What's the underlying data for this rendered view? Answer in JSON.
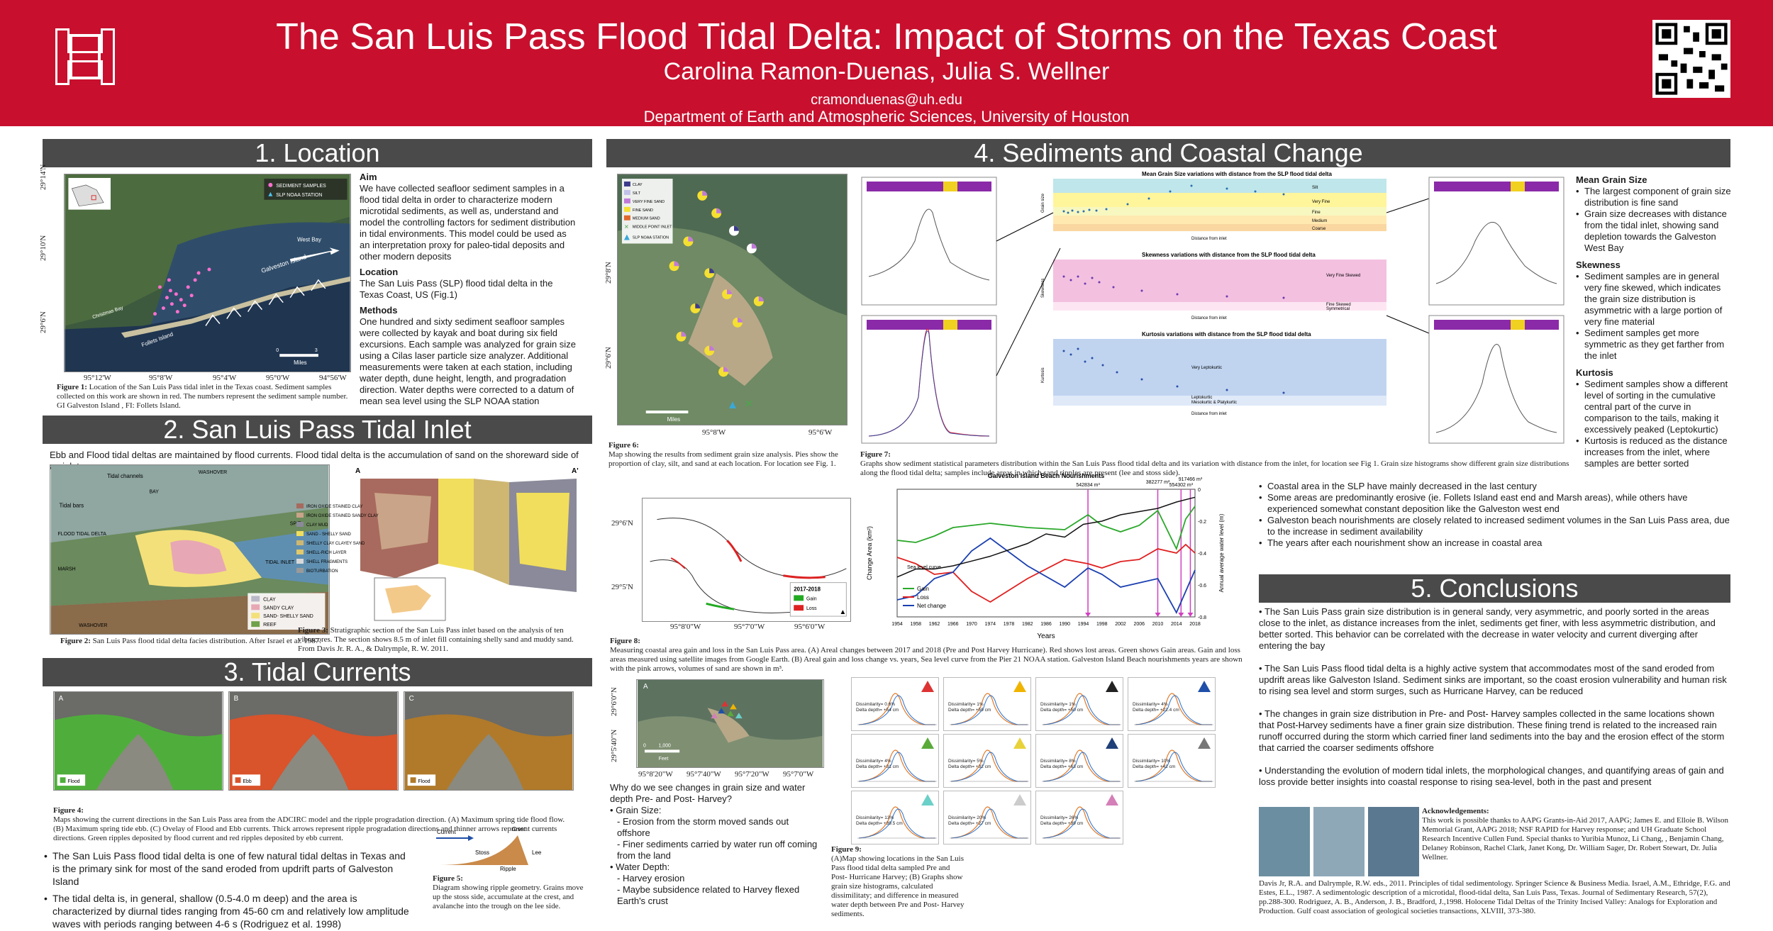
{
  "header": {
    "title": "The San Luis Pass Flood Tidal Delta: Impact of Storms on the Texas Coast",
    "authors": "Carolina Ramon-Duenas, Julia S. Wellner",
    "email": "cramonduenas@uh.edu",
    "department": "Department of Earth and Atmospheric Sciences, University of Houston"
  },
  "sections": {
    "s1": "1. Location",
    "s2": "2. San Luis Pass Tidal Inlet",
    "s3": "3. Tidal Currents",
    "s4": "4. Sediments and Coastal Change",
    "s5": "5. Conclusions"
  },
  "location": {
    "aim_title": "Aim",
    "aim_text": "We have collected seafloor sediment samples in a flood tidal delta in order to characterize modern microtidal sediments, as well as, understand and model the controlling factors for sediment distribution in tidal environments. This model could be used as an interpretation proxy for paleo-tidal deposits and other modern deposits",
    "loc_title": "Location",
    "loc_text": "The San Luis Pass (SLP) flood tidal delta in the Texas Coast, US (Fig.1)",
    "meth_title": "Methods",
    "meth_text": "One hundred and sixty sediment seafloor samples were collected by kayak and boat during six field excursions. Each sample was analyzed for grain size using a Cilas laser particle size analyzer. Additional measurements were taken at each station, including water depth, dune height, length, and progradation direction. Water depths were corrected to a datum of mean sea level using the SLP NOAA station",
    "fig1_label": "Figure 1:",
    "fig1_caption": "Location of the San Luis Pass tidal inlet in the Texas coast. Sediment samples collected on this work are shown in red. The numbers represent the sediment sample number. GI Galveston Island , FI: Follets Island.",
    "map_legend": [
      "SEDIMENT SAMPLES",
      "SLP NOAA STATION"
    ],
    "lat_labels": [
      "29°14'N",
      "29°10'N",
      "29°6'N"
    ],
    "lon_labels": [
      "95°12'W",
      "95°8'W",
      "95°4'W",
      "95°0'W",
      "94°56'W"
    ],
    "scale": "Miles",
    "scale_ticks": [
      "0",
      "3"
    ],
    "map_text": [
      "Galveston Island",
      "West Bay",
      "Follets Island",
      "Christmas Bay"
    ]
  },
  "inlet": {
    "intro": "Ebb and Flood tidal deltas are maintained by flood currents.  Flood tidal delta is the accumulation of sand on the shoreward side of an inlet",
    "fig2_label": "Figure 2:",
    "fig2_caption": "San Luis Pass flood tidal delta facies distribution. After Israel et al. 1987.",
    "fig3_label": "Figure 3:",
    "fig3_caption": "Stratigraphic section of the San Luis Pass inlet based on  the analysis of ten vibracores. The section shows 8.5 m of inlet fill containing shelly sand and muddy sand. From Davis Jr. R. A., & Dalrymple, R. W. 2011.",
    "block_labels": [
      "Tidal channels",
      "WASHOVER",
      "BAY",
      "Tidal bars",
      "FLOOD TIDAL DELTA",
      "MARSH",
      "WASHOVER",
      "SPIT",
      "TIDAL INLET"
    ],
    "facies_legend": [
      "CLAY",
      "SANDY CLAY",
      "SAND- SHELLY SAND",
      "REEF"
    ],
    "facies_colors": [
      "#b9b9c8",
      "#e8a7b4",
      "#f3e07a",
      "#6fa24a"
    ],
    "strat_legend": [
      "IRON OXIDE STAINED CLAY",
      "IRON OXIDE STAINED SANDY CLAY",
      "CLAY MUD",
      "SAND - SHELLY SAND",
      "SHELLY CLAY CLAYEY SAND",
      "SHELL-RICH LAYER",
      "SHELL FRAGMENTS",
      "BIOTURBATION"
    ],
    "strat_colors": [
      "#a86a5e",
      "#c9a488",
      "#8a8a9a",
      "#f1de5c",
      "#cfb772",
      "#e3c96a",
      "#d8d8d8",
      "#9a9a9a"
    ],
    "section_labels": [
      "A",
      "A'"
    ]
  },
  "currents": {
    "fig4_label": "Figure 4:",
    "fig4_caption": "Maps showing the current directions in the San Luis Pass area from the ADCIRC model and the ripple progradation direction. (A) Maximum spring tide flood flow. (B) Maximum spring tide ebb. (C) Ovelay  of Flood and Ebb currents. Thick arrows represent ripple progradation directions and thinner arrows represent currents directions. Green ripples deposited by flood current  and red ripples deposited by ebb current.",
    "panels": [
      {
        "label": "A",
        "legend": "Flood",
        "color": "#4fae3b"
      },
      {
        "label": "B",
        "legend": "Ebb",
        "color": "#d9532b"
      },
      {
        "label": "C",
        "legend": "Flood",
        "color": "#b07a2a"
      }
    ],
    "bullets": [
      "The San Luis Pass flood tidal delta is one of few natural tidal deltas in Texas and is the primary sink for most of the sand eroded from updrift parts of Galveston Island",
      "The tidal delta is, in general, shallow (0.5-4.0 m deep) and the area is characterized by diurnal tides ranging from 45-60 cm and relatively low amplitude waves with periods ranging between 4-6 s (Rodriguez et al. 1998)"
    ],
    "fig5_label": "Figure 5:",
    "fig5_caption": "Diagram showing ripple geometry. Grains move up the stoss side, accumulate at the crest, and avalanche into the trough on the lee side.",
    "ripple_labels": [
      "Current",
      "Crest",
      "Lee",
      "Stoss",
      "Ripple"
    ]
  },
  "sediments": {
    "fig6_label": "Figure 6:",
    "fig6_caption": "Map showing the results from sediment grain size analysis. Pies show the proportion of clay, silt, and sand at each location. For location see Fig. 1.",
    "fig6_legend": [
      "CLAY",
      "SILT",
      "VERY FINE SAND",
      "FINE SAND",
      "MEDIUM SAND",
      "MIDDLE POINT INLET",
      "SLP NOAA STATION"
    ],
    "fig6_colors": [
      "#3c3c8c",
      "#c0c0e8",
      "#c07ad8",
      "#f5e032",
      "#e0682c",
      "#4aa84a",
      "#3aa8d8"
    ],
    "fig6_lat": [
      "29°8'N",
      "29°6'N"
    ],
    "fig6_lon": [
      "95°8'W",
      "95°6'W"
    ],
    "fig6_scale": "Miles",
    "fig7_label": "Figure 7:",
    "fig7_caption": "Graphs show sediment statistical parameters distribution within the San Luis Pass flood tidal delta and its variation with distance from the inlet, for location see Fig 1. Grain size histograms show different grain size distributions along the flood tidal delta; samples include areas in which sand  ripples are present (lee and stoss side).",
    "fig7_titles": [
      "Mean Grain Size variations with distance from the SLP flood tidal delta",
      "Skewness variations with distance from the SLP flood tidal delta",
      "Kurtosis variations with distance from the SLP flood tidal delta"
    ],
    "fig7_xlabel": "Distance from inlet",
    "fig7_ylabels": [
      "Grain size",
      "Skewness",
      "Kurtosis"
    ],
    "fig7_bands_mean": [
      "Silt",
      "Very Fine",
      "Fine",
      "Medium",
      "Coarse"
    ],
    "fig7_bands_skew": [
      "Very Fine Skewed",
      "Fine Skewed",
      "Symmetrical"
    ],
    "fig7_bands_kurt": [
      "Very Leptokurtic",
      "Leptokurtic",
      "Mesokurtic & Platykurtic"
    ],
    "right_notes": [
      {
        "title": "Mean Grain Size",
        "items": [
          "The largest component of grain size distribution is fine sand",
          "Grain size decreases with distance from the tidal inlet, showing sand depletion towards the Galveston West Bay"
        ]
      },
      {
        "title": "Skewness",
        "items": [
          "Sediment samples are in general very fine skewed, which indicates the grain size distribution is asymmetric with a large portion of very fine material",
          "Sediment samples get more symmetric as they get farther from the inlet"
        ]
      },
      {
        "title": "Kurtosis",
        "items": [
          "Sediment samples show a different level of sorting in the cumulative central part of the curve in comparison to the tails, making it excessively peaked (Leptokurtic)",
          "Kurtosis is reduced as the distance increases from the inlet, where samples are better sorted"
        ]
      }
    ],
    "fig8_label": "Figure 8:",
    "fig8_caption": "Measuring coastal area gain and loss in the San Luis Pass area. (A) Areal changes between 2017 and 2018 (Pre and Post Harvey Hurricane). Red shows lost areas. Green shows Gain areas. Gain and loss areas measured using satellite images from Google Earth. (B) Areal gain and loss change vs. years, Sea level curve from the Pier 21 NOAA station. Galveston Island Beach nourishments years are shown with the pink arrows, volumes of sand are shown in m³.",
    "fig8_map_legend_title": "2017-2018",
    "fig8_map_legend": [
      "Gain",
      "Loss"
    ],
    "fig8_lat": [
      "29°6'N",
      "29°5'N"
    ],
    "fig8_lon": [
      "95°8'0\"W",
      "95°7'0\"W",
      "95°6'0\"W"
    ],
    "fig9_label": "Figure 9:",
    "fig9_caption": "(A)Map showing locations in the San Luis Pass flood tidal delta sampled Pre and  Post- Hurricane Harvey; (B) Graphs show grain size histograms, calculated dissimilitaty; and difference in measured water depth between  Pre and Post- Harvey sediments.",
    "fig9_map_lat": [
      "29°6'0\"N",
      "29°5'40\"N"
    ],
    "fig9_map_lon": [
      "95°8'20\"W",
      "95°7'40\"W",
      "95°7'20\"W",
      "95°7'0\"W"
    ],
    "fig9_scale": [
      "0",
      "1,000",
      "Feet"
    ],
    "harvey_q": "Why do we see changes in grain size and water depth Pre- and Post- Harvey?",
    "harvey_items": [
      {
        "head": "Grain Size:",
        "sub": [
          "Erosion from the storm moved sands out offshore",
          "Finer sediments carried by water run off coming from the land"
        ]
      },
      {
        "head": "Water Depth:",
        "sub": [
          "Harvey erosion",
          "Maybe subsidence related to Harvey flexed Earth's crust"
        ]
      }
    ],
    "hist_panels": [
      {
        "dis": "Dissimilarity= 0.6%",
        "depth": "Delta depth= +54 cm",
        "tri": "#d33"
      },
      {
        "dis": "Dissimilarity= 1%",
        "depth": "Delta depth= +59 cm",
        "tri": "#f0b400"
      },
      {
        "dis": "Dissimilarity= 1%",
        "depth": "Delta depth= +50 cm",
        "tri": "#222"
      },
      {
        "dis": "Dissimilarity= 4%",
        "depth": "Delta depth= +22.4 cm",
        "tri": "#1f4fa8"
      },
      {
        "dis": "Dissimilarity= 4%",
        "depth": "Delta depth= +31 cm",
        "tri": "#5aaa3a"
      },
      {
        "dis": "Dissimilarity= 5%",
        "depth": "Delta depth= +32 cm",
        "tri": "#e8d23a"
      },
      {
        "dis": "Dissimilarity= 8%",
        "depth": "Delta depth= +63 cm",
        "tri": "#1f3f78"
      },
      {
        "dis": "Dissimilarity= 10%",
        "depth": "Delta depth= +42 cm",
        "tri": "#777"
      },
      {
        "dis": "Dissimilarity= 13%",
        "depth": "Delta depth= +39.5 cm",
        "tri": "#6ad0c8"
      },
      {
        "dis": "Dissimilarity= 20%",
        "depth": "Delta depth= +27 cm",
        "tri": "#ccc"
      },
      {
        "dis": "Dissimilarity= 26%",
        "depth": "Delta depth= +39 cm",
        "tri": "#d47fb8"
      }
    ],
    "change_bullets": [
      "Coastal area in the SLP have mainly decreased in the last century",
      "Some areas are predominantly erosive (ie. Follets Island east end and Marsh areas), while others have experienced somewhat constant deposition like the Galveston west end",
      "Galveston beach nourishments are closely related to increased sediment volumes in the San Luis Pass area, due to the increase in sediment availability",
      "The years after each nourishment show an increase in coastal area"
    ]
  },
  "chart_data": {
    "type": "line",
    "title": "Galveston Island Beach Nourishments",
    "xlabel": "Years",
    "ylabel": "Change Area (km²)",
    "y2label": "Annual average water level (m)",
    "x": [
      1954,
      1958,
      1962,
      1966,
      1970,
      1974,
      1978,
      1982,
      1986,
      1990,
      1994,
      1998,
      2002,
      2006,
      2010,
      2014,
      2018
    ],
    "xlim": [
      1954,
      2018
    ],
    "ylim": [
      0,
      6
    ],
    "y2lim": [
      -0.8,
      0
    ],
    "y2ticks": [
      0,
      -0.2,
      -0.4,
      -0.6,
      -0.8
    ],
    "series": [
      {
        "name": "Gain",
        "color": "#2aa82a",
        "x": [
          1954,
          1958,
          1962,
          1966,
          1970,
          1974,
          1982,
          1990,
          1995,
          1998,
          2002,
          2006,
          2010,
          2014,
          2016,
          2018
        ],
        "values": [
          3.6,
          3.5,
          3.8,
          4.2,
          4.3,
          4.4,
          4.2,
          4.1,
          4.8,
          4.3,
          4.0,
          4.3,
          5.0,
          3.2,
          4.6,
          5.2
        ]
      },
      {
        "name": "Loss",
        "color": "#e02020",
        "x": [
          1954,
          1958,
          1962,
          1966,
          1970,
          1974,
          1982,
          1990,
          1995,
          1998,
          2002,
          2006,
          2010,
          2014,
          2016,
          2018
        ],
        "values": [
          2.8,
          2.5,
          2.0,
          2.1,
          1.2,
          0.7,
          1.8,
          2.7,
          2.5,
          2.3,
          2.6,
          2.7,
          3.2,
          3.0,
          3.4,
          3.0
        ]
      },
      {
        "name": "Net change",
        "color": "#1a3fb0",
        "x": [
          1954,
          1958,
          1962,
          1966,
          1970,
          1974,
          1982,
          1990,
          1995,
          1998,
          2002,
          2006,
          2010,
          2014,
          2016,
          2018
        ],
        "values": [
          0.8,
          1.0,
          1.8,
          2.1,
          3.1,
          3.7,
          2.4,
          1.4,
          2.3,
          2.0,
          1.4,
          1.6,
          1.8,
          0.2,
          1.2,
          2.2
        ]
      },
      {
        "name": "Sea level curve",
        "color": "#111111",
        "x": [
          1954,
          1958,
          1962,
          1966,
          1970,
          1974,
          1978,
          1982,
          1986,
          1990,
          1994,
          1998,
          2002,
          2006,
          2010,
          2014,
          2018
        ],
        "values": [
          -0.55,
          -0.5,
          -0.5,
          -0.48,
          -0.45,
          -0.42,
          -0.38,
          -0.34,
          -0.28,
          -0.3,
          -0.22,
          -0.2,
          -0.16,
          -0.14,
          -0.12,
          -0.08,
          -0.05
        ]
      }
    ],
    "nourishments": [
      {
        "year": 1995,
        "label": "542834 m³"
      },
      {
        "year": 2010,
        "label": "382277 m³"
      },
      {
        "year": 2015,
        "label": "554302 m³"
      },
      {
        "year": 2017,
        "label": "917466 m³"
      }
    ]
  },
  "conclusions": [
    "The San Luis Pass grain size distribution is in general sandy, very asymmetric, and poorly sorted in the areas close to the inlet, as distance increases from the inlet, sediments get finer, with less asymmetric distribution, and better sorted. This behavior can be correlated with the decrease in water velocity and current diverging after entering the bay",
    "The San Luis Pass flood tidal delta is a highly active system that accommodates most of the sand eroded from updrift areas like Galveston Island. Sediment sinks are important, so the coast erosion vulnerability and human risk to rising  sea level and storm surges, such as Hurricane Harvey, can be reduced",
    "The changes in grain size distribution in Pre- and Post- Harvey samples collected in the same locations shown that Post-Harvey sediments have a finer grain size distribution. These fining trend is related to the increased rain runoff occurred during the storm which carried finer land sediments into the bay and the erosion effect of the storm that carried the coarser sediments offshore",
    "Understanding the evolution of modern tidal inlets, the morphological changes, and quantifying areas of gain and loss provide better insights into coastal response to rising sea-level, both in the past and present"
  ],
  "ack": {
    "title": "Acknowledgements:",
    "text": "This work is possible thanks to AAPG Grants-in-Aid 2017, AAPG; James E. and Elloie B. Wilson Memorial Grant, AAPG 2018; NSF RAPID for Harvey response; and UH Graduate School Research Incentive Cullen Fund. Special thanks to Yuribia Munoz, Li Chang, , Benjamin Chang,  Delaney Robinson,  Rachel Clark, Janet Kong,  Dr. William Sager, Dr. Robert Stewart, Dr. Julia Wellner."
  },
  "refs": "Davis Jr, R.A. and Dalrymple, R.W. eds., 2011. Principles of tidal sedimentology. Springer Science & Business Media. Israel, A.M., Ethridge, F.G. and Estes, E.L., 1987. A sedimentologic description of a microtidal, flood-tidal delta, San Luis Pass, Texas. Journal of Sedimentary Research, 57(2), pp.288-300. Rodriguez, A. B., Anderson, J. B., Bradford, J.,1998. Holocene Tidal Deltas of the Trinity Incised Valley: Analogs for Exploration and Production. Gulf coast association of geological societies transactions, XLVIII, 373-380."
}
